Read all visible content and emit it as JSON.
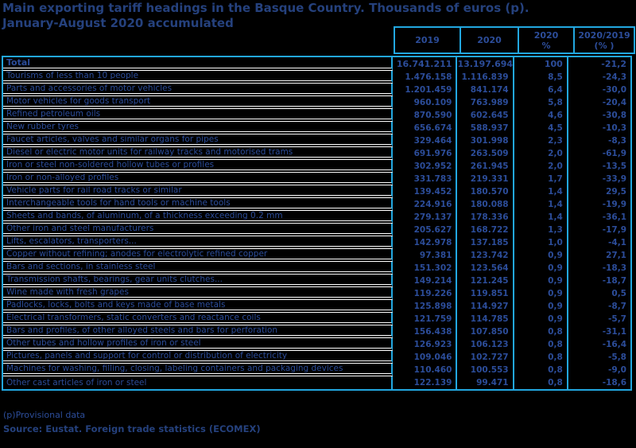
{
  "title": {
    "line1": "Main exporting tariff headings in the Basque Country. Thousands of euros (p).",
    "line2": "January-August 2020 accumulated"
  },
  "chart_data": {
    "type": "table",
    "title": "Main exporting tariff headings in the Basque Country. Thousands of euros (p). January-August 2020 accumulated",
    "columns": [
      "2019",
      "2020",
      "2020\n%",
      "2020/2019\n(% )"
    ],
    "total_row": [
      "Total",
      "16.741.211",
      "13.197.694",
      "100",
      "-21,2"
    ],
    "rows": [
      [
        "Tourisms of less than 10 people",
        "1.476.158",
        "1.116.839",
        "8,5",
        "-24,3"
      ],
      [
        "Parts and accessories of motor vehicles",
        "1.201.459",
        "841.174",
        "6,4",
        "-30,0"
      ],
      [
        "Motor vehicles for goods transport",
        "960.109",
        "763.989",
        "5,8",
        "-20,4"
      ],
      [
        "Refined petroleum oils",
        "870.590",
        "602.645",
        "4,6",
        "-30,8"
      ],
      [
        "New rubber tyres",
        "656.674",
        "588.937",
        "4,5",
        "-10,3"
      ],
      [
        "Faucet articles, valves and similar organs for pipes",
        "329.464",
        "301.998",
        "2,3",
        "-8,3"
      ],
      [
        "Diesel or electric motor units for railway tracks and motorised trams",
        "691.976",
        "263.509",
        "2,0",
        "-61,9"
      ],
      [
        "Iron or steel non-soldered hollow tubes or profiles",
        "302.952",
        "261.945",
        "2,0",
        "-13,5"
      ],
      [
        "Iron or non-alloyed profiles",
        "331.783",
        "219.331",
        "1,7",
        "-33,9"
      ],
      [
        "Vehicle parts for rail road tracks or similar",
        "139.452",
        "180.570",
        "1,4",
        "29,5"
      ],
      [
        "Interchangeable tools for hand tools or machine tools",
        "224.916",
        "180.088",
        "1,4",
        "-19,9"
      ],
      [
        "Sheets and bands, of aluminum, of a thickness exceeding 0.2 mm",
        "279.137",
        "178.336",
        "1,4",
        "-36,1"
      ],
      [
        "Other iron and steel manufacturers",
        "205.627",
        "168.722",
        "1,3",
        "-17,9"
      ],
      [
        "Lifts, escalators, transporters...",
        "142.978",
        "137.185",
        "1,0",
        "-4,1"
      ],
      [
        "Copper without refining; anodes for electrolytic refined copper",
        "97.381",
        "123.742",
        "0,9",
        "27,1"
      ],
      [
        "Bars and sections, in stainless steel",
        "151.302",
        "123.564",
        "0,9",
        "-18,3"
      ],
      [
        "Transmission shafts, bearings, gear units clutches...",
        "149.214",
        "121.245",
        "0,9",
        "-18,7"
      ],
      [
        "Wine made with fresh grapes",
        "119.226",
        "119.851",
        "0,9",
        "0,5"
      ],
      [
        "Padlocks, locks, bolts and keys made of base metals",
        "125.898",
        "114.927",
        "0,9",
        "-8,7"
      ],
      [
        "Electrical transformers, static converters and reactance coils",
        "121.759",
        "114.785",
        "0,9",
        "-5,7"
      ],
      [
        "Bars and profiles, of other alloyed steels and bars for perforation",
        "156.438",
        "107.850",
        "0,8",
        "-31,1"
      ],
      [
        "Other tubes and hollow profiles of iron or steel",
        "126.923",
        "106.123",
        "0,8",
        "-16,4"
      ],
      [
        "Pictures, panels and support for control or distribution of electricity",
        "109.046",
        "102.727",
        "0,8",
        "-5,8"
      ],
      [
        "Machines for washing, filling, closing, labeling containers and packaging devices",
        "110.460",
        "100.553",
        "0,8",
        "-9,0"
      ],
      [
        "Other cast articles of iron or steel",
        "122.139",
        "99.471",
        "0,8",
        "-18,6"
      ]
    ]
  },
  "footnote": "(p)Provisional data",
  "source": "Source: Eustat. Foreign trade statistics (ECOMEX)",
  "colors": {
    "background": "#000000",
    "table_border": "#22a7e0",
    "text_blue": "#2c4d9a",
    "title_blue": "#25417d",
    "row_separator": "#ffffff"
  }
}
